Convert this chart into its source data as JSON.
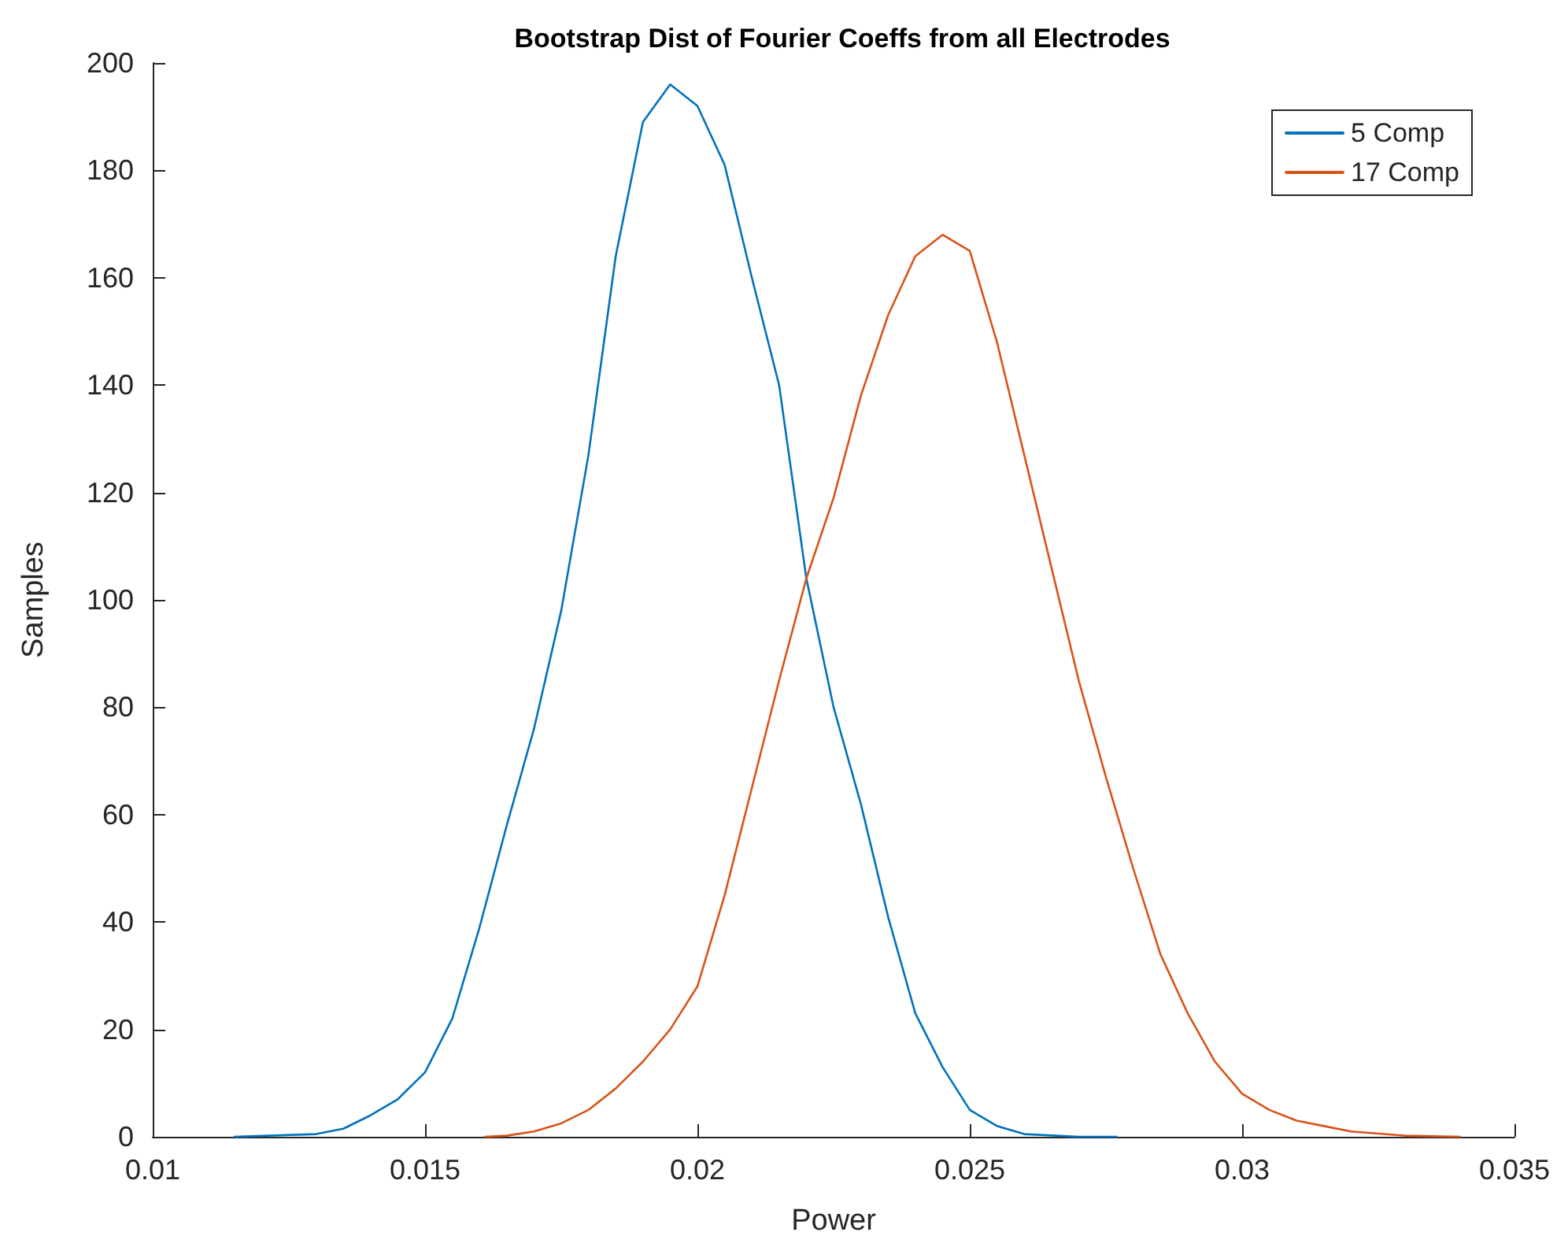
{
  "chart_data": {
    "type": "line",
    "title": "Bootstrap Dist of Fourier Coeffs from all Electrodes",
    "xlabel": "Power",
    "ylabel": "Samples",
    "xlim": [
      0.01,
      0.035
    ],
    "xticks": [
      0.01,
      0.015,
      0.02,
      0.025,
      0.03,
      0.035
    ],
    "ylim": [
      0,
      200
    ],
    "yticks": [
      0,
      20,
      40,
      60,
      80,
      100,
      120,
      140,
      160,
      180,
      200
    ],
    "grid": false,
    "legend": "top right",
    "marker": "none",
    "line_style": "solid",
    "series": [
      {
        "name": "5 Comp",
        "color": "#0072bd",
        "x": [
          0.0115,
          0.013,
          0.0135,
          0.014,
          0.0145,
          0.015,
          0.0155,
          0.016,
          0.0165,
          0.017,
          0.0175,
          0.018,
          0.0185,
          0.019,
          0.0195,
          0.02,
          0.0205,
          0.021,
          0.0215,
          0.022,
          0.0225,
          0.023,
          0.0235,
          0.024,
          0.0245,
          0.025,
          0.0255,
          0.026,
          0.027,
          0.0277
        ],
        "values": [
          0,
          0.5,
          1.5,
          4,
          7,
          12,
          22,
          39,
          58,
          76,
          98,
          127,
          164,
          189,
          196,
          192,
          181,
          160,
          140,
          104,
          80,
          62,
          41,
          23,
          13,
          5,
          2,
          0.5,
          0,
          0
        ]
      },
      {
        "name": "17 Comp",
        "color": "#d95319",
        "x": [
          0.0161,
          0.0165,
          0.017,
          0.0175,
          0.018,
          0.0185,
          0.019,
          0.0195,
          0.02,
          0.0205,
          0.021,
          0.0215,
          0.022,
          0.0225,
          0.023,
          0.0235,
          0.024,
          0.0245,
          0.025,
          0.0255,
          0.026,
          0.0265,
          0.027,
          0.0275,
          0.028,
          0.0285,
          0.029,
          0.0295,
          0.03,
          0.0305,
          0.031,
          0.0315,
          0.032,
          0.033,
          0.034
        ],
        "values": [
          0,
          0.2,
          1,
          2.5,
          5,
          9,
          14,
          20,
          28,
          45,
          65,
          85,
          104,
          119,
          138,
          153,
          164,
          168,
          165,
          148,
          127,
          106,
          85,
          67,
          50,
          34,
          23,
          14,
          8,
          5,
          3,
          2,
          1,
          0.2,
          0
        ]
      }
    ]
  }
}
